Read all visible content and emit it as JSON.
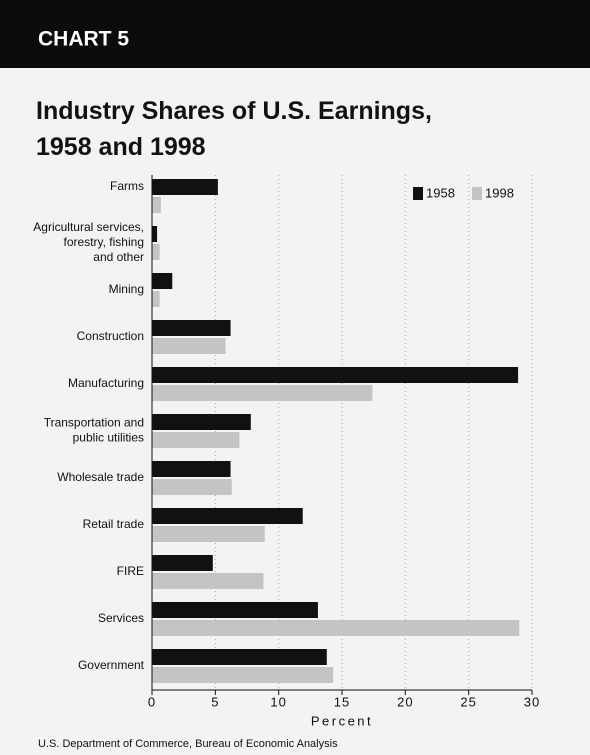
{
  "header": {
    "label": "CHART 5"
  },
  "chart_data": {
    "type": "bar",
    "orientation": "horizontal",
    "title": "Industry Shares of U.S. Earnings,\n1958 and 1998",
    "categories": [
      "Farms",
      "Agricultural services,\nforestry, fishing\nand other",
      "Mining",
      "Construction",
      "Manufacturing",
      "Transportation and\npublic utilities",
      "Wholesale trade",
      "Retail trade",
      "FIRE",
      "Services",
      "Government"
    ],
    "series": [
      {
        "name": "1958",
        "color": "#111111",
        "values": [
          5.2,
          0.4,
          1.6,
          6.2,
          28.9,
          7.8,
          6.2,
          11.9,
          4.8,
          13.1,
          13.8
        ]
      },
      {
        "name": "1998",
        "color": "#c4c4c4",
        "values": [
          0.7,
          0.6,
          0.6,
          5.8,
          17.4,
          6.9,
          6.3,
          8.9,
          8.8,
          29.0,
          14.3
        ]
      }
    ],
    "xlim": [
      0,
      30
    ],
    "xticks": [
      0,
      5,
      10,
      15,
      20,
      25,
      30
    ],
    "grid": true,
    "xlabel": "Percent",
    "legend": "top-right",
    "source": "U.S. Department of Commerce, Bureau of Economic Analysis"
  }
}
